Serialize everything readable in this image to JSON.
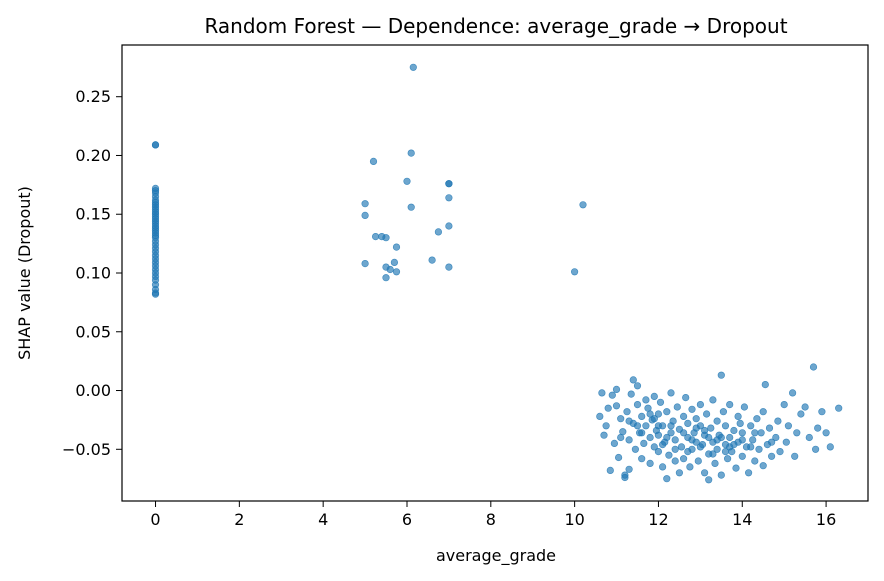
{
  "chart_data": {
    "type": "scatter",
    "title": "Random Forest — Dependence: average_grade → Dropout",
    "xlabel": "average_grade",
    "ylabel": "SHAP value (Dropout)",
    "xlim": [
      -0.8,
      17.0
    ],
    "ylim": [
      -0.094,
      0.294
    ],
    "xticks": [
      0,
      2,
      4,
      6,
      8,
      10,
      12,
      14,
      16
    ],
    "yticks": [
      -0.05,
      0.0,
      0.05,
      0.1,
      0.15,
      0.2,
      0.25
    ],
    "ytick_labels": [
      "−0.05",
      "0.00",
      "0.05",
      "0.10",
      "0.15",
      "0.20",
      "0.25"
    ],
    "grid": false,
    "point_color": "#1f77b4",
    "points": [
      [
        0,
        0.209
      ],
      [
        0,
        0.209
      ],
      [
        0,
        0.172
      ],
      [
        0,
        0.17
      ],
      [
        0,
        0.168
      ],
      [
        0,
        0.165
      ],
      [
        0,
        0.162
      ],
      [
        0,
        0.16
      ],
      [
        0,
        0.158
      ],
      [
        0,
        0.156
      ],
      [
        0,
        0.154
      ],
      [
        0,
        0.152
      ],
      [
        0,
        0.15
      ],
      [
        0,
        0.148
      ],
      [
        0,
        0.146
      ],
      [
        0,
        0.144
      ],
      [
        0,
        0.142
      ],
      [
        0,
        0.14
      ],
      [
        0,
        0.138
      ],
      [
        0,
        0.136
      ],
      [
        0,
        0.134
      ],
      [
        0,
        0.132
      ],
      [
        0,
        0.13
      ],
      [
        0,
        0.127
      ],
      [
        0,
        0.124
      ],
      [
        0,
        0.121
      ],
      [
        0,
        0.118
      ],
      [
        0,
        0.115
      ],
      [
        0,
        0.112
      ],
      [
        0,
        0.109
      ],
      [
        0,
        0.106
      ],
      [
        0,
        0.103
      ],
      [
        0,
        0.1
      ],
      [
        0,
        0.097
      ],
      [
        0,
        0.094
      ],
      [
        0,
        0.09
      ],
      [
        0,
        0.086
      ],
      [
        0,
        0.083
      ],
      [
        0,
        0.082
      ],
      [
        5.0,
        0.159
      ],
      [
        5.0,
        0.149
      ],
      [
        5.0,
        0.108
      ],
      [
        5.2,
        0.195
      ],
      [
        5.25,
        0.131
      ],
      [
        5.4,
        0.131
      ],
      [
        5.5,
        0.13
      ],
      [
        5.5,
        0.105
      ],
      [
        5.5,
        0.096
      ],
      [
        5.6,
        0.103
      ],
      [
        5.7,
        0.109
      ],
      [
        5.75,
        0.101
      ],
      [
        5.75,
        0.122
      ],
      [
        6.0,
        0.178
      ],
      [
        6.1,
        0.202
      ],
      [
        6.1,
        0.156
      ],
      [
        6.15,
        0.275
      ],
      [
        6.6,
        0.111
      ],
      [
        6.75,
        0.135
      ],
      [
        7.0,
        0.176
      ],
      [
        7.0,
        0.176
      ],
      [
        7.0,
        0.164
      ],
      [
        7.0,
        0.14
      ],
      [
        7.0,
        0.105
      ],
      [
        10.0,
        0.101
      ],
      [
        10.2,
        0.158
      ],
      [
        10.6,
        -0.022
      ],
      [
        10.65,
        -0.002
      ],
      [
        10.7,
        -0.038
      ],
      [
        10.75,
        -0.03
      ],
      [
        10.8,
        -0.015
      ],
      [
        10.85,
        -0.068
      ],
      [
        10.9,
        -0.004
      ],
      [
        10.95,
        -0.045
      ],
      [
        11.0,
        0.001
      ],
      [
        11.0,
        -0.013
      ],
      [
        11.05,
        -0.057
      ],
      [
        11.1,
        -0.024
      ],
      [
        11.15,
        -0.035
      ],
      [
        11.2,
        -0.072
      ],
      [
        11.2,
        -0.074
      ],
      [
        11.25,
        -0.018
      ],
      [
        11.3,
        -0.042
      ],
      [
        11.3,
        -0.067
      ],
      [
        11.35,
        -0.003
      ],
      [
        11.4,
        0.009
      ],
      [
        11.4,
        -0.028
      ],
      [
        11.45,
        -0.05
      ],
      [
        11.5,
        -0.012
      ],
      [
        11.5,
        0.004
      ],
      [
        11.55,
        -0.036
      ],
      [
        11.6,
        -0.022
      ],
      [
        11.6,
        -0.058
      ],
      [
        11.65,
        -0.045
      ],
      [
        11.7,
        -0.008
      ],
      [
        11.7,
        -0.03
      ],
      [
        11.75,
        -0.015
      ],
      [
        11.8,
        -0.062
      ],
      [
        11.8,
        -0.04
      ],
      [
        11.85,
        -0.025
      ],
      [
        11.9,
        -0.005
      ],
      [
        11.9,
        -0.048
      ],
      [
        11.95,
        -0.034
      ],
      [
        12.0,
        -0.02
      ],
      [
        12.0,
        -0.052
      ],
      [
        12.0,
        -0.038
      ],
      [
        12.05,
        -0.01
      ],
      [
        12.1,
        -0.065
      ],
      [
        12.1,
        -0.03
      ],
      [
        12.15,
        -0.044
      ],
      [
        12.2,
        -0.075
      ],
      [
        12.2,
        -0.018
      ],
      [
        12.25,
        -0.055
      ],
      [
        12.3,
        -0.036
      ],
      [
        12.3,
        -0.002
      ],
      [
        12.35,
        -0.026
      ],
      [
        12.4,
        -0.06
      ],
      [
        12.4,
        -0.042
      ],
      [
        12.45,
        -0.014
      ],
      [
        12.5,
        -0.07
      ],
      [
        12.5,
        -0.033
      ],
      [
        12.55,
        -0.048
      ],
      [
        12.6,
        -0.022
      ],
      [
        12.6,
        -0.058
      ],
      [
        12.65,
        -0.006
      ],
      [
        12.7,
        -0.04
      ],
      [
        12.7,
        -0.028
      ],
      [
        12.75,
        -0.065
      ],
      [
        12.8,
        -0.016
      ],
      [
        12.8,
        -0.05
      ],
      [
        12.85,
        -0.036
      ],
      [
        12.9,
        -0.024
      ],
      [
        12.9,
        -0.044
      ],
      [
        12.95,
        -0.06
      ],
      [
        13.0,
        -0.03
      ],
      [
        13.0,
        -0.012
      ],
      [
        13.05,
        -0.046
      ],
      [
        13.1,
        -0.07
      ],
      [
        13.1,
        -0.038
      ],
      [
        13.15,
        -0.02
      ],
      [
        13.2,
        -0.076
      ],
      [
        13.2,
        -0.054
      ],
      [
        13.25,
        -0.032
      ],
      [
        13.3,
        -0.044
      ],
      [
        13.3,
        -0.008
      ],
      [
        13.35,
        -0.062
      ],
      [
        13.4,
        -0.026
      ],
      [
        13.4,
        -0.05
      ],
      [
        13.45,
        -0.038
      ],
      [
        13.5,
        0.013
      ],
      [
        13.5,
        -0.072
      ],
      [
        13.55,
        -0.018
      ],
      [
        13.6,
        -0.046
      ],
      [
        13.6,
        -0.03
      ],
      [
        13.65,
        -0.058
      ],
      [
        13.7,
        -0.04
      ],
      [
        13.7,
        -0.012
      ],
      [
        13.75,
        -0.052
      ],
      [
        13.8,
        -0.034
      ],
      [
        13.85,
        -0.066
      ],
      [
        13.9,
        -0.022
      ],
      [
        13.9,
        -0.044
      ],
      [
        13.95,
        -0.028
      ],
      [
        14.0,
        -0.056
      ],
      [
        14.0,
        -0.036
      ],
      [
        14.05,
        -0.014
      ],
      [
        14.1,
        -0.048
      ],
      [
        14.15,
        -0.07
      ],
      [
        14.2,
        -0.03
      ],
      [
        14.25,
        -0.042
      ],
      [
        14.3,
        -0.06
      ],
      [
        14.35,
        -0.024
      ],
      [
        14.4,
        -0.05
      ],
      [
        14.45,
        -0.036
      ],
      [
        14.5,
        -0.064
      ],
      [
        14.5,
        -0.018
      ],
      [
        14.55,
        0.005
      ],
      [
        14.6,
        -0.046
      ],
      [
        14.65,
        -0.032
      ],
      [
        14.7,
        -0.056
      ],
      [
        14.8,
        -0.04
      ],
      [
        14.85,
        -0.026
      ],
      [
        14.9,
        -0.052
      ],
      [
        15.0,
        -0.012
      ],
      [
        15.05,
        -0.044
      ],
      [
        15.1,
        -0.03
      ],
      [
        15.2,
        -0.002
      ],
      [
        15.25,
        -0.056
      ],
      [
        15.3,
        -0.036
      ],
      [
        15.4,
        -0.02
      ],
      [
        15.5,
        -0.014
      ],
      [
        15.6,
        -0.04
      ],
      [
        15.7,
        0.02
      ],
      [
        15.75,
        -0.05
      ],
      [
        15.8,
        -0.032
      ],
      [
        15.9,
        -0.018
      ],
      [
        16.0,
        -0.036
      ],
      [
        16.1,
        -0.048
      ],
      [
        16.3,
        -0.015
      ],
      [
        11.1,
        -0.04
      ],
      [
        11.3,
        -0.026
      ],
      [
        11.6,
        -0.036
      ],
      [
        11.8,
        -0.02
      ],
      [
        12.0,
        -0.03
      ],
      [
        12.2,
        -0.04
      ],
      [
        12.4,
        -0.05
      ],
      [
        12.6,
        -0.036
      ],
      [
        12.8,
        -0.042
      ],
      [
        13.0,
        -0.048
      ],
      [
        13.2,
        -0.04
      ],
      [
        13.4,
        -0.042
      ],
      [
        13.6,
        -0.052
      ],
      [
        13.8,
        -0.046
      ],
      [
        14.0,
        -0.042
      ],
      [
        14.2,
        -0.048
      ],
      [
        12.1,
        -0.046
      ],
      [
        12.3,
        -0.03
      ],
      [
        12.7,
        -0.052
      ],
      [
        13.1,
        -0.034
      ],
      [
        13.3,
        -0.054
      ],
      [
        13.5,
        -0.04
      ],
      [
        11.9,
        -0.024
      ],
      [
        11.5,
        -0.03
      ],
      [
        12.9,
        -0.032
      ],
      [
        13.7,
        -0.048
      ],
      [
        14.3,
        -0.036
      ],
      [
        14.7,
        -0.044
      ]
    ]
  }
}
